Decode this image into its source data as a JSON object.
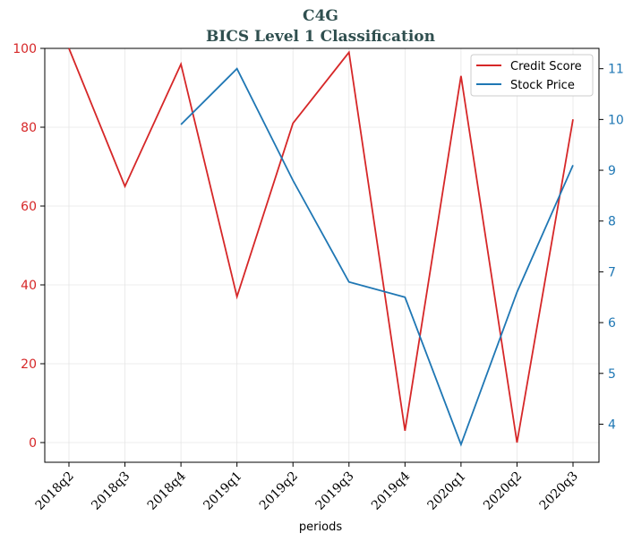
{
  "chart_data": {
    "type": "line",
    "title": "C4G",
    "subtitle": "BICS Level 1 Classification",
    "xlabel": "periods",
    "ylabel_left": "",
    "ylabel_right": "",
    "categories": [
      "2018q2",
      "2018q3",
      "2018q4",
      "2019q1",
      "2019q2",
      "2019q3",
      "2019q4",
      "2020q1",
      "2020q2",
      "2020q3"
    ],
    "ylim_left": [
      -5,
      100
    ],
    "yticks_left": [
      0,
      20,
      40,
      60,
      80,
      100
    ],
    "ylim_right": [
      3.25,
      11.4
    ],
    "yticks_right": [
      4,
      5,
      6,
      7,
      8,
      9,
      10,
      11
    ],
    "grid": true,
    "legend_position": "top-right",
    "series": [
      {
        "name": "Credit Score",
        "axis": "left",
        "color": "#d62728",
        "values": [
          100,
          65,
          96,
          37,
          81,
          99,
          3,
          93,
          0,
          82
        ]
      },
      {
        "name": "Stock Price",
        "axis": "right",
        "color": "#1f77b4",
        "values": [
          null,
          null,
          9.9,
          11.0,
          8.8,
          6.8,
          6.5,
          3.6,
          6.6,
          9.1
        ]
      }
    ]
  }
}
